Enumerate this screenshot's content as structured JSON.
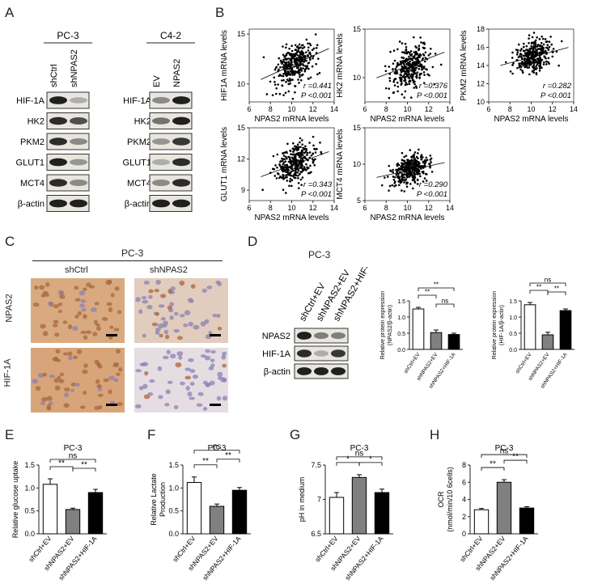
{
  "panels": {
    "A": {
      "label": "A",
      "group1": {
        "cell": "PC-3",
        "lanes": [
          "shCtrl",
          "shNPAS2"
        ]
      },
      "group2": {
        "cell": "C4-2",
        "lanes": [
          "EV",
          "NPAS2"
        ]
      },
      "proteins": [
        "HIF-1A",
        "HK2",
        "PKM2",
        "GLUT1",
        "MCT4",
        "β-actin"
      ],
      "intensity_g1": [
        [
          0.95,
          0.35
        ],
        [
          0.9,
          0.75
        ],
        [
          0.9,
          0.5
        ],
        [
          0.95,
          0.45
        ],
        [
          0.9,
          0.5
        ],
        [
          0.95,
          0.95
        ]
      ],
      "intensity_g2": [
        [
          0.5,
          0.95
        ],
        [
          0.6,
          0.95
        ],
        [
          0.45,
          0.85
        ],
        [
          0.35,
          0.9
        ],
        [
          0.5,
          0.9
        ],
        [
          0.95,
          0.95
        ]
      ]
    },
    "B": {
      "label": "B"
    },
    "C": {
      "label": "C",
      "cell": "PC-3",
      "cols": [
        "shCtrl",
        "shNPAS2"
      ],
      "rows": [
        "NPAS2",
        "HIF-1A"
      ]
    },
    "D": {
      "label": "D",
      "cell": "PC-3",
      "lanes": [
        "shCtrl+EV",
        "shNPAS2+EV",
        "shNPAS2+HIF-1A"
      ],
      "proteins": [
        "NPAS2",
        "HIF-1A",
        "β-actin"
      ],
      "intensity": [
        [
          0.95,
          0.55,
          0.55
        ],
        [
          0.9,
          0.35,
          0.85
        ],
        [
          0.95,
          0.95,
          0.95
        ]
      ]
    },
    "E": {
      "label": "E"
    },
    "F": {
      "label": "F"
    },
    "G": {
      "label": "G"
    },
    "H": {
      "label": "H"
    }
  },
  "chart_data": [
    {
      "id": "B1",
      "type": "scatter",
      "ylabel": "HIF1A mRNA levels",
      "xlabel": "NPAS2 mRNA levels",
      "xlim": [
        6,
        14
      ],
      "ylim": [
        8.2,
        15.5
      ],
      "xticks": [
        6,
        8,
        10,
        12,
        14
      ],
      "yticks": [
        10,
        15
      ],
      "r": "r =0.441",
      "p": "P <0.001",
      "slope": 0.441,
      "cx": 10.3,
      "cy": 12.0,
      "sx": 0.9,
      "sy": 1.0
    },
    {
      "id": "B2",
      "type": "scatter",
      "ylabel": "HK2 mRNA levels",
      "xlabel": "NPAS2 mRNA levels",
      "xlim": [
        6,
        14
      ],
      "ylim": [
        7.5,
        15
      ],
      "xticks": [
        6,
        8,
        10,
        12,
        14
      ],
      "yticks": [
        10,
        15
      ],
      "r": "r =0.376",
      "p": "P <0.001",
      "slope": 0.376,
      "cx": 10.3,
      "cy": 11.3,
      "sx": 0.9,
      "sy": 1.0
    },
    {
      "id": "B3",
      "type": "scatter",
      "ylabel": "PKM2 mRNA levels",
      "xlabel": "NPAS2 mRNA levels",
      "xlim": [
        6,
        14
      ],
      "ylim": [
        10,
        18
      ],
      "xticks": [
        6,
        8,
        10,
        12,
        14
      ],
      "yticks": [
        10,
        12,
        14,
        16,
        18
      ],
      "r": "r =0.282",
      "p": "P <0.001",
      "slope": 0.282,
      "cx": 10.3,
      "cy": 15.0,
      "sx": 0.9,
      "sy": 0.9
    },
    {
      "id": "B4",
      "type": "scatter",
      "ylabel": "GLUT1 mRNA levels",
      "xlabel": "NPAS2 mRNA levels",
      "xlim": [
        6,
        14
      ],
      "ylim": [
        8,
        15
      ],
      "xticks": [
        6,
        8,
        10,
        12,
        14
      ],
      "yticks": [
        9,
        12,
        15
      ],
      "r": "r =0.343",
      "p": "P <0.001",
      "slope": 0.343,
      "cx": 10.3,
      "cy": 11.5,
      "sx": 0.9,
      "sy": 0.9
    },
    {
      "id": "B5",
      "type": "scatter",
      "ylabel": "MCT4 mRNA levels",
      "xlabel": "NPAS2 mRNA levels",
      "xlim": [
        6,
        14
      ],
      "ylim": [
        5,
        15
      ],
      "xticks": [
        6,
        8,
        10,
        12,
        14
      ],
      "yticks": [
        5,
        10,
        15
      ],
      "r": "r =0.290",
      "p": "P <0.001",
      "slope": 0.29,
      "cx": 10.3,
      "cy": 9.2,
      "sx": 0.9,
      "sy": 1.0
    },
    {
      "id": "D1",
      "type": "bar",
      "ylabel": "Relative protein expression\n(NPAS2/β-actin)",
      "categories": [
        "shCtrl+EV",
        "shNPAS2+EV",
        "shNPAS2+HIF-1A"
      ],
      "values": [
        1.25,
        0.52,
        0.46
      ],
      "errors": [
        0.05,
        0.08,
        0.04
      ],
      "ylim": [
        0,
        1.5
      ],
      "yticks": [
        0.0,
        0.5,
        1.0,
        1.5
      ],
      "fills": [
        "#ffffff",
        "#808080",
        "#000000"
      ],
      "sig": [
        {
          "a": 0,
          "b": 1,
          "label": "**",
          "level": 1
        },
        {
          "a": 0,
          "b": 2,
          "label": "**",
          "level": 2
        },
        {
          "a": 1,
          "b": 2,
          "label": "ns",
          "level": 0
        }
      ]
    },
    {
      "id": "D2",
      "type": "bar",
      "ylabel": "Relative protein expression\n(HIF-1A/β-actin)",
      "categories": [
        "shCtrl+EV",
        "shNPAS2+EV",
        "shNPAS2+HIF-1A"
      ],
      "values": [
        1.38,
        0.45,
        1.2
      ],
      "errors": [
        0.07,
        0.08,
        0.05
      ],
      "ylim": [
        0,
        1.5
      ],
      "yticks": [
        0.0,
        0.5,
        1.0,
        1.5
      ],
      "fills": [
        "#ffffff",
        "#808080",
        "#000000"
      ],
      "sig": [
        {
          "a": 0,
          "b": 1,
          "label": "**",
          "level": 1
        },
        {
          "a": 1,
          "b": 2,
          "label": "**",
          "level": 1
        },
        {
          "a": 0,
          "b": 2,
          "label": "ns",
          "level": 2
        }
      ]
    },
    {
      "id": "E",
      "type": "bar",
      "title": "PC-3",
      "ylabel": "Relative glucose uptake",
      "categories": [
        "shCtrl+EV",
        "shNPAS2+EV",
        "shNPAS2+HIF-1A"
      ],
      "values": [
        1.08,
        0.53,
        0.9
      ],
      "errors": [
        0.12,
        0.03,
        0.07
      ],
      "ylim": [
        0,
        1.5
      ],
      "yticks": [
        0.0,
        0.5,
        1.0,
        1.5
      ],
      "fills": [
        "#ffffff",
        "#808080",
        "#000000"
      ],
      "sig": [
        {
          "a": 0,
          "b": 1,
          "label": "**",
          "level": 1
        },
        {
          "a": 1,
          "b": 2,
          "label": "**",
          "level": 1
        },
        {
          "a": 0,
          "b": 2,
          "label": "ns",
          "level": 2
        }
      ]
    },
    {
      "id": "F",
      "type": "bar",
      "title": "PC-3",
      "ylabel": "Relative Lactate\nProduction",
      "categories": [
        "shCtrl+EV",
        "shNPAS2+EV",
        "shNPAS2+HIF-1A"
      ],
      "values": [
        1.12,
        0.6,
        0.95
      ],
      "errors": [
        0.12,
        0.05,
        0.06
      ],
      "ylim": [
        0,
        1.5
      ],
      "yticks": [
        0.0,
        0.5,
        1.0,
        1.5
      ],
      "fills": [
        "#ffffff",
        "#808080",
        "#000000"
      ],
      "sig": [
        {
          "a": 0,
          "b": 1,
          "label": "**",
          "level": 1
        },
        {
          "a": 1,
          "b": 2,
          "label": "**",
          "level": 2
        },
        {
          "a": 0,
          "b": 2,
          "label": "ns",
          "level": 3
        }
      ]
    },
    {
      "id": "G",
      "type": "bar",
      "title": "PC-3",
      "ylabel": "pH in medium",
      "categories": [
        "shCtrl+EV",
        "shNPAS2+EV",
        "shNPAS2+HIF-1A"
      ],
      "values": [
        7.03,
        7.32,
        7.1
      ],
      "errors": [
        0.07,
        0.04,
        0.05
      ],
      "ylim": [
        6.5,
        7.5
      ],
      "yticks": [
        6.5,
        7.0,
        7.5
      ],
      "fills": [
        "#ffffff",
        "#808080",
        "#000000"
      ],
      "sig": [
        {
          "a": 0,
          "b": 1,
          "label": "*",
          "level": 1
        },
        {
          "a": 1,
          "b": 2,
          "label": "*",
          "level": 1
        },
        {
          "a": 0,
          "b": 2,
          "label": "ns",
          "level": 2
        }
      ]
    },
    {
      "id": "H",
      "type": "bar",
      "title": "PC-3",
      "ylabel": "OCR\n(nmol/min/10 6cells)",
      "categories": [
        "shCtrl+EV",
        "shNPAS2+EV",
        "shNPAS2+HIF-1A"
      ],
      "values": [
        2.8,
        6.0,
        3.0
      ],
      "errors": [
        0.15,
        0.3,
        0.15
      ],
      "ylim": [
        0,
        8
      ],
      "yticks": [
        0,
        2,
        4,
        6,
        8
      ],
      "fills": [
        "#ffffff",
        "#808080",
        "#000000"
      ],
      "sig": [
        {
          "a": 0,
          "b": 1,
          "label": "**",
          "level": 1
        },
        {
          "a": 1,
          "b": 2,
          "label": "**",
          "level": 2
        },
        {
          "a": 0,
          "b": 2,
          "label": "ns",
          "level": 3
        }
      ]
    }
  ]
}
